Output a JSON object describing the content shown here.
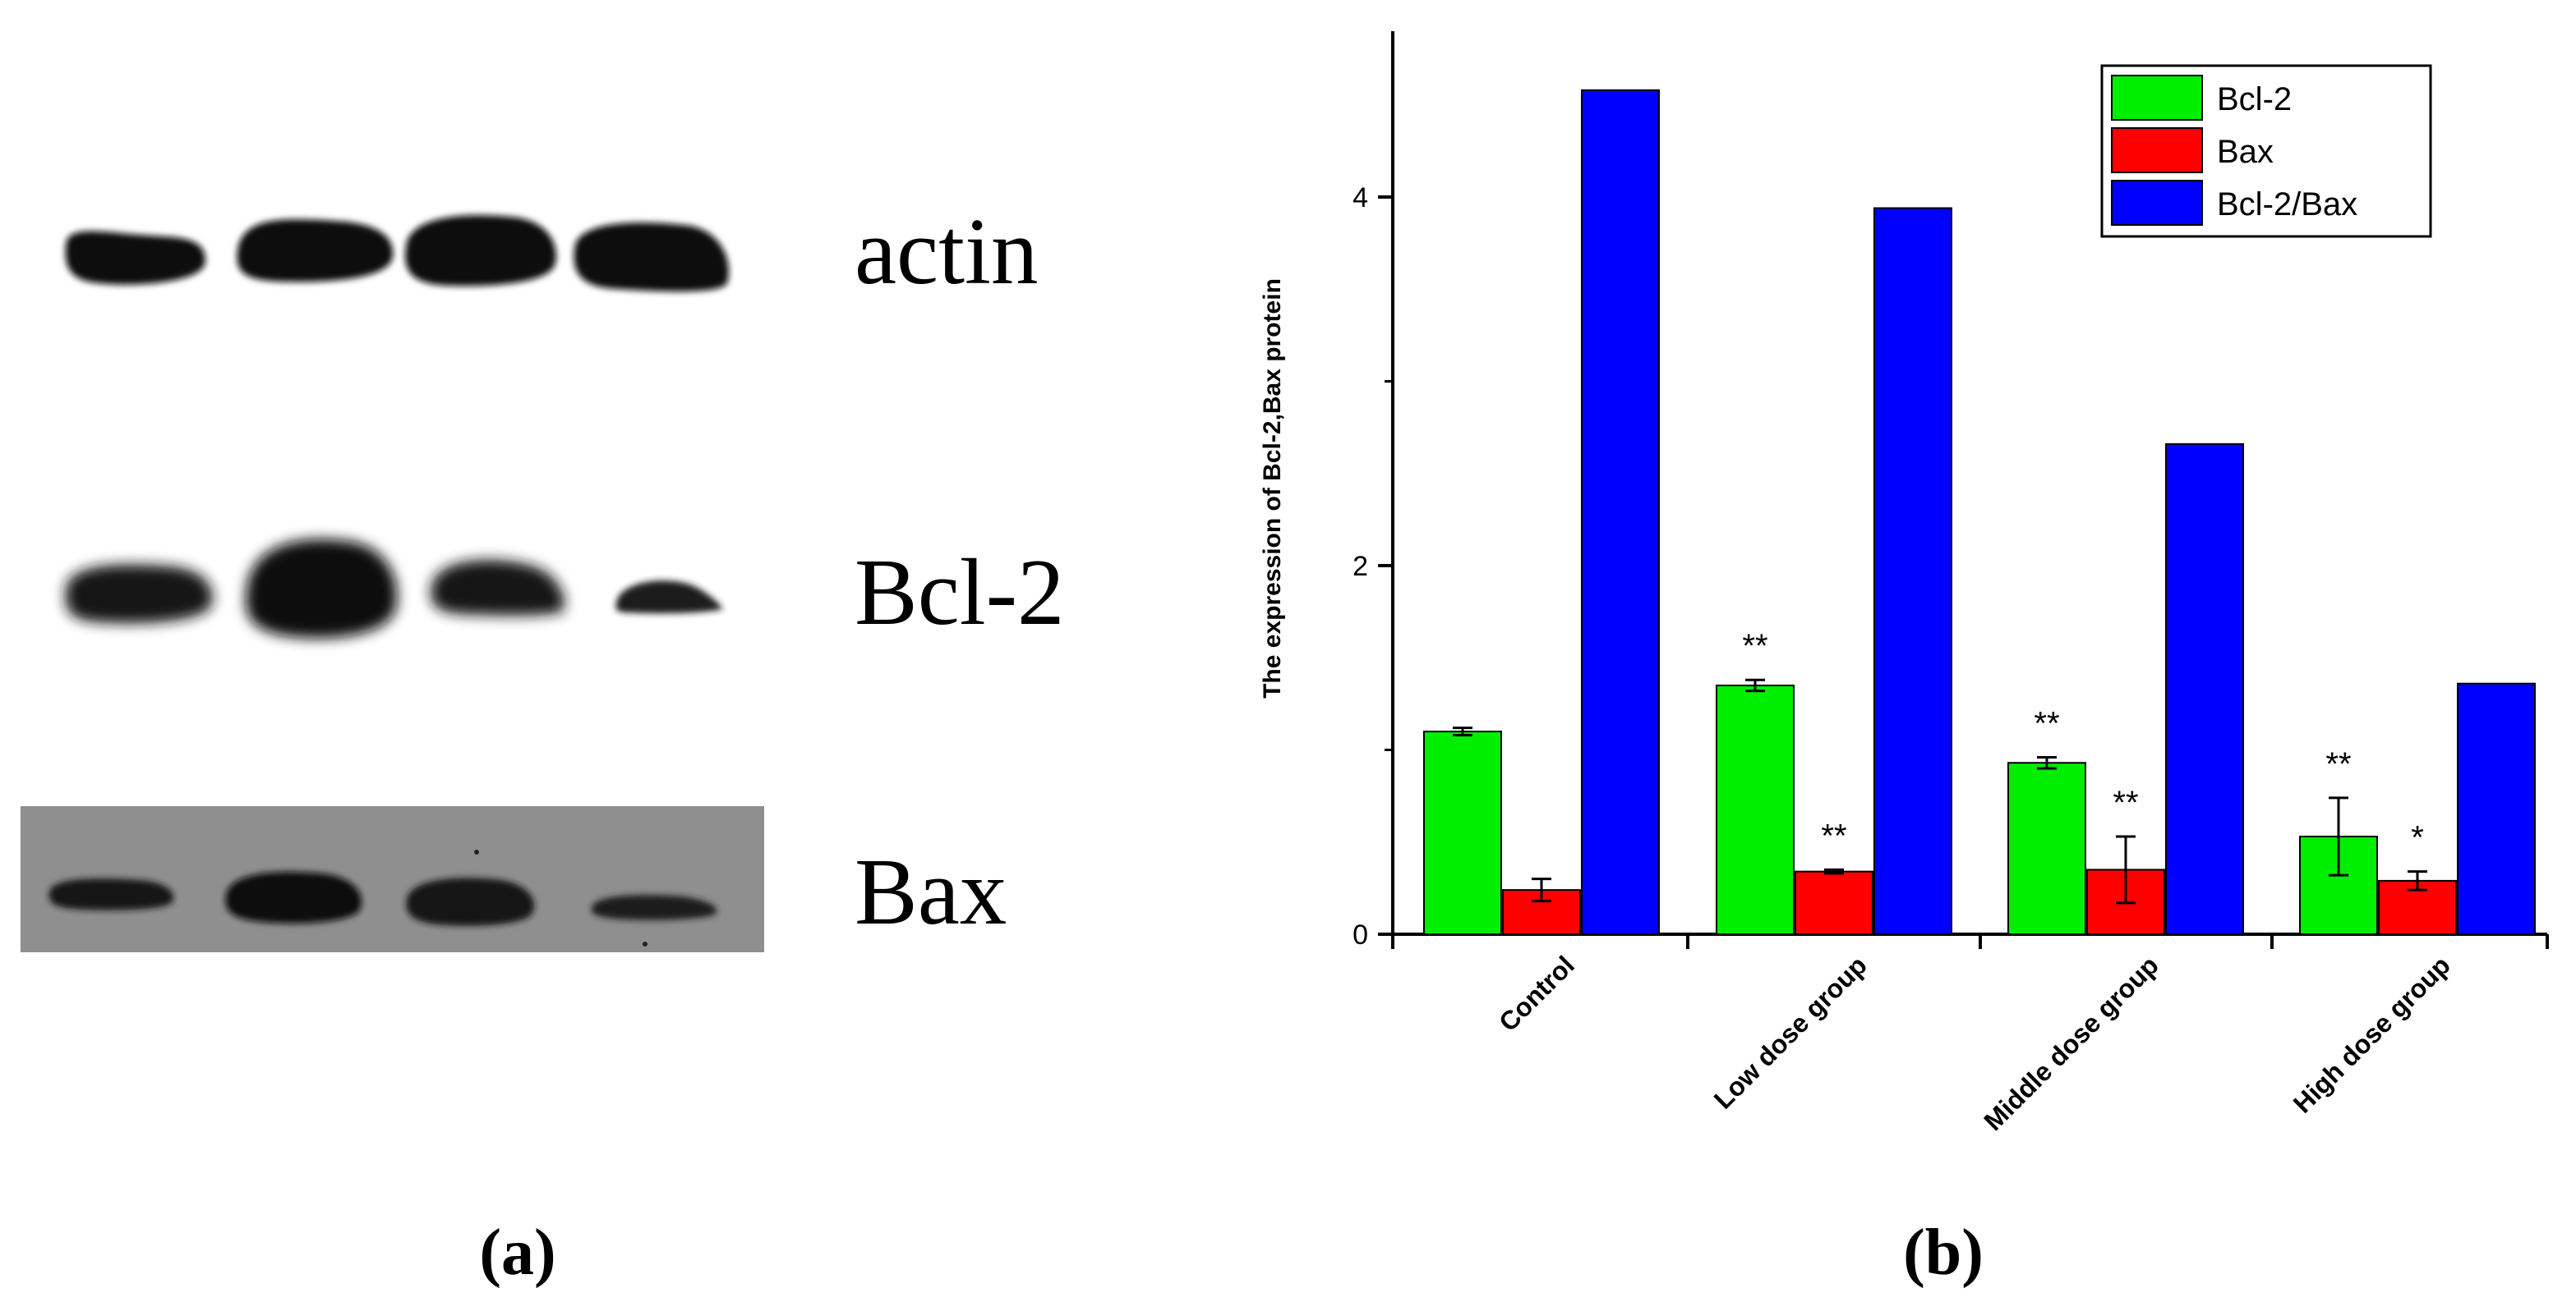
{
  "panel_a": {
    "panel_label": "(a)",
    "lane_count": 4,
    "bands": [
      {
        "label": "actin"
      },
      {
        "label": "Bcl-2"
      },
      {
        "label": "Bax"
      }
    ]
  },
  "panel_b": {
    "panel_label": "(b)"
  },
  "chart_data": {
    "type": "bar",
    "title": "",
    "xlabel": "",
    "ylabel": "The expression of Bcl-2,Bax protein",
    "ylim": [
      0,
      4.9
    ],
    "yticks": [
      0,
      2,
      4
    ],
    "grid": false,
    "legend_position": "top-right",
    "categories": [
      "Control",
      "Low dose group",
      "Middle dose group",
      "High dose group"
    ],
    "series": [
      {
        "name": "Bcl-2",
        "color": "#00ee00",
        "values": [
          1.1,
          1.35,
          0.93,
          0.53
        ],
        "errors": [
          0.02,
          0.03,
          0.03,
          0.21
        ],
        "annotations": [
          "",
          "**",
          "**",
          "**"
        ]
      },
      {
        "name": "Bax",
        "color": "#ff0000",
        "values": [
          0.24,
          0.34,
          0.35,
          0.29
        ],
        "errors": [
          0.06,
          0.01,
          0.18,
          0.05
        ],
        "annotations": [
          "",
          "**",
          "**",
          "*"
        ]
      },
      {
        "name": "Bcl-2/Bax",
        "color": "#0000ff",
        "values": [
          4.58,
          3.94,
          2.66,
          1.36
        ],
        "errors": [
          0,
          0,
          0,
          0
        ],
        "annotations": [
          "",
          "",
          "",
          ""
        ]
      }
    ]
  }
}
